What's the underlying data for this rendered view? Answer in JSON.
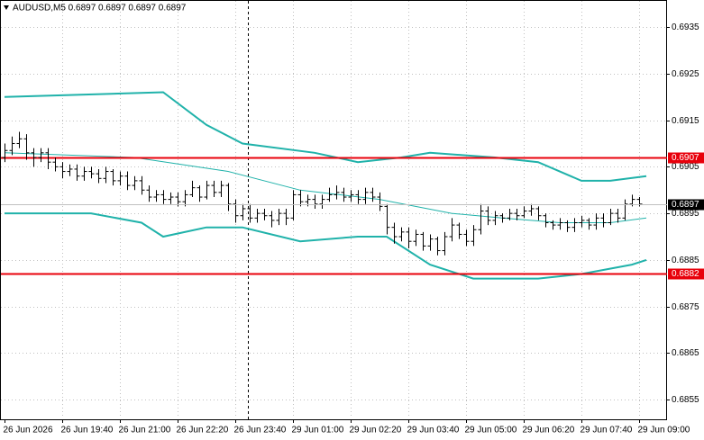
{
  "chart_data": {
    "type": "ohlc",
    "title": "AUDUSD,M5  0.6897 0.6897 0.6897 0.6897",
    "categories": [
      "26 Jun 2026",
      null,
      null,
      null,
      null,
      null,
      null,
      null,
      "26 Jun 19:40",
      null,
      null,
      null,
      null,
      null,
      null,
      null,
      "26 Jun 21:00",
      null,
      null,
      null,
      null,
      null,
      null,
      null,
      "26 Jun 22:20",
      null,
      null,
      null,
      null,
      null,
      null,
      null,
      "26 Jun 23:40",
      null,
      null,
      null,
      null,
      null,
      null,
      null,
      "29 Jun 01:00",
      null,
      null,
      null,
      null,
      null,
      null,
      null,
      "29 Jun 02:20",
      null,
      null,
      null,
      null,
      null,
      null,
      null,
      "29 Jun 03:40",
      null,
      null,
      null,
      null,
      null,
      null,
      null,
      "29 Jun 05:00",
      null,
      null,
      null,
      null,
      null,
      null,
      null,
      "29 Jun 06:20",
      null,
      null,
      null,
      null,
      null,
      null,
      null,
      "29 Jun 07:40",
      null,
      null,
      null,
      null,
      null,
      null,
      null,
      "29 Jun 09:00"
    ],
    "open": [
      0.6907,
      0.69085,
      0.691,
      0.6911,
      0.6908,
      0.6907,
      0.6908,
      0.6906,
      0.6905,
      0.6904,
      0.69045,
      0.6903,
      0.6904,
      0.69035,
      0.69025,
      0.6904,
      0.6902,
      0.6903,
      0.6901,
      0.6902,
      0.69,
      0.68985,
      0.6899,
      0.6898,
      0.68985,
      0.68975,
      0.6899,
      0.69005,
      0.68985,
      0.6901,
      0.68995,
      0.6901,
      0.6897,
      0.68945,
      0.6896,
      0.6894,
      0.6895,
      0.68945,
      0.68935,
      0.6895,
      0.6894,
      0.6899,
      0.68975,
      0.6898,
      0.6897,
      0.6898,
      0.6899,
      0.68995,
      0.68985,
      0.6899,
      0.6898,
      0.68995,
      0.68985,
      0.68965,
      0.6892,
      0.689,
      0.6891,
      0.6889,
      0.68905,
      0.6888,
      0.68895,
      0.6887,
      0.689,
      0.68925,
      0.68905,
      0.6889,
      0.68915,
      0.68955,
      0.68935,
      0.68945,
      0.6894,
      0.6895,
      0.68945,
      0.68955,
      0.6896,
      0.68945,
      0.6893,
      0.68925,
      0.6893,
      0.6892,
      0.6893,
      0.68935,
      0.68925,
      0.6894,
      0.6893,
      0.6895,
      0.6894,
      0.6897,
      0.6898
    ],
    "high": [
      0.691,
      0.69115,
      0.69125,
      0.6912,
      0.6909,
      0.6909,
      0.6909,
      0.6907,
      0.6906,
      0.69055,
      0.69055,
      0.6905,
      0.6905,
      0.69045,
      0.6905,
      0.69045,
      0.6904,
      0.6904,
      0.6903,
      0.6903,
      0.6901,
      0.69,
      0.69,
      0.68995,
      0.68995,
      0.69,
      0.6902,
      0.6901,
      0.6902,
      0.6902,
      0.6902,
      0.69015,
      0.6898,
      0.6897,
      0.6897,
      0.6896,
      0.6896,
      0.68955,
      0.6896,
      0.6896,
      0.69,
      0.69,
      0.6899,
      0.6899,
      0.6899,
      0.69005,
      0.6901,
      0.69005,
      0.69,
      0.69,
      0.69005,
      0.69005,
      0.68995,
      0.6897,
      0.6893,
      0.6892,
      0.6892,
      0.68915,
      0.6891,
      0.68905,
      0.689,
      0.6891,
      0.6894,
      0.6893,
      0.68915,
      0.68925,
      0.6897,
      0.68965,
      0.68955,
      0.6895,
      0.6896,
      0.6896,
      0.68965,
      0.6897,
      0.68965,
      0.6895,
      0.68935,
      0.6894,
      0.68935,
      0.6894,
      0.68945,
      0.6894,
      0.6895,
      0.6895,
      0.6896,
      0.6896,
      0.6898,
      0.6899,
      0.68985
    ],
    "low": [
      0.6906,
      0.69075,
      0.6909,
      0.69065,
      0.6905,
      0.6906,
      0.69045,
      0.6904,
      0.69025,
      0.6903,
      0.6902,
      0.6902,
      0.69025,
      0.69015,
      0.69015,
      0.6901,
      0.6901,
      0.69,
      0.69,
      0.6899,
      0.68975,
      0.68975,
      0.6897,
      0.6897,
      0.68965,
      0.68965,
      0.68985,
      0.68975,
      0.6898,
      0.68985,
      0.68985,
      0.68955,
      0.6893,
      0.68935,
      0.6893,
      0.6893,
      0.68935,
      0.6892,
      0.68925,
      0.68925,
      0.68935,
      0.68965,
      0.68965,
      0.6896,
      0.6896,
      0.68975,
      0.6898,
      0.68975,
      0.68975,
      0.6897,
      0.6897,
      0.68975,
      0.68955,
      0.68905,
      0.68885,
      0.6889,
      0.68875,
      0.6888,
      0.6887,
      0.6887,
      0.6886,
      0.6886,
      0.6889,
      0.68895,
      0.6888,
      0.6888,
      0.68905,
      0.68925,
      0.68925,
      0.6893,
      0.68935,
      0.68935,
      0.6894,
      0.68945,
      0.68935,
      0.6892,
      0.68915,
      0.68915,
      0.6891,
      0.6891,
      0.6892,
      0.68915,
      0.68915,
      0.6892,
      0.68925,
      0.6893,
      0.68935,
      0.68965,
      0.68965
    ],
    "close": [
      0.69085,
      0.691,
      0.6911,
      0.6908,
      0.6907,
      0.6908,
      0.6906,
      0.6905,
      0.6904,
      0.69045,
      0.6903,
      0.6904,
      0.69035,
      0.69025,
      0.6904,
      0.6902,
      0.6903,
      0.6901,
      0.6902,
      0.69,
      0.68985,
      0.6899,
      0.6898,
      0.68985,
      0.68975,
      0.6899,
      0.69005,
      0.68985,
      0.6901,
      0.68995,
      0.6901,
      0.6897,
      0.68945,
      0.6896,
      0.6894,
      0.6895,
      0.68945,
      0.68935,
      0.6895,
      0.6894,
      0.6899,
      0.68975,
      0.6898,
      0.6897,
      0.6898,
      0.6899,
      0.68995,
      0.68985,
      0.6899,
      0.6898,
      0.68995,
      0.68985,
      0.68965,
      0.6892,
      0.689,
      0.6891,
      0.6889,
      0.68905,
      0.6888,
      0.68895,
      0.6887,
      0.689,
      0.68925,
      0.68905,
      0.6889,
      0.68915,
      0.68955,
      0.68935,
      0.68945,
      0.6894,
      0.6895,
      0.68945,
      0.68955,
      0.6896,
      0.68945,
      0.6893,
      0.68925,
      0.6893,
      0.6892,
      0.6893,
      0.68935,
      0.68925,
      0.6894,
      0.6893,
      0.6895,
      0.6894,
      0.6897,
      0.6898,
      0.6897
    ],
    "color": "#000000",
    "bands": [
      {
        "x": [
          0,
          22,
          28,
          33,
          43,
          49,
          55,
          59,
          68,
          74,
          80,
          84,
          89
        ],
        "values": [
          0.692,
          0.6921,
          0.6914,
          0.691,
          0.6908,
          0.6906,
          0.6907,
          0.6908,
          0.6907,
          0.6906,
          0.6902,
          0.6902,
          0.6903
        ]
      },
      {
        "x": [
          0,
          18,
          31,
          41,
          52,
          62,
          69,
          77,
          84,
          89
        ],
        "values": [
          0.6908,
          0.6907,
          0.6904,
          0.69,
          0.6898,
          0.6895,
          0.6894,
          0.6893,
          0.6893,
          0.6894
        ]
      },
      {
        "x": [
          0,
          12,
          19,
          22,
          28,
          33,
          41,
          49,
          53,
          59,
          65,
          74,
          80,
          87,
          89
        ],
        "values": [
          0.6895,
          0.6895,
          0.6893,
          0.689,
          0.6892,
          0.6892,
          0.6889,
          0.689,
          0.689,
          0.6884,
          0.6881,
          0.6881,
          0.6882,
          0.6884,
          0.6885
        ]
      }
    ],
    "band_color": "#20b2aa",
    "levels": [
      {
        "value": 0.6907,
        "color": "#e8000b"
      },
      {
        "value": 0.6882,
        "color": "#e8000b"
      }
    ],
    "last": 0.6897,
    "ylim": [
      0.68508,
      0.69408
    ],
    "yticks": [
      0.6935,
      0.6925,
      0.6915,
      0.6905,
      0.6895,
      0.6885,
      0.6875,
      0.6865,
      0.6855
    ],
    "grid": true
  }
}
